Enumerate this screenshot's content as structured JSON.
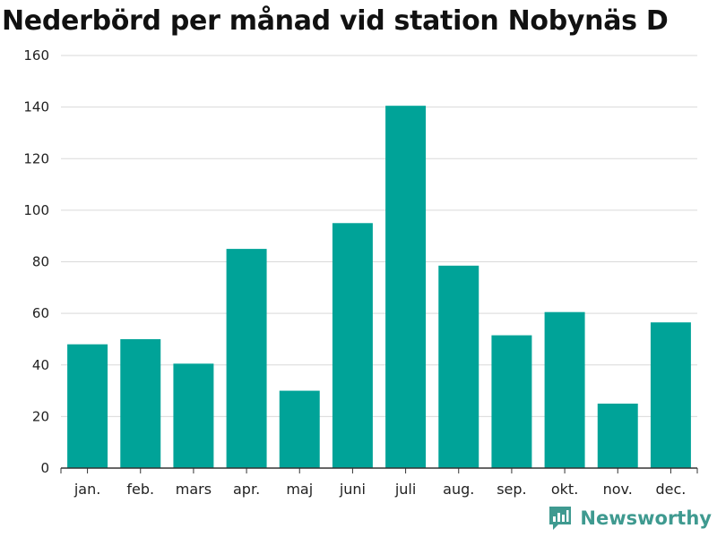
{
  "chart_data": {
    "type": "bar",
    "title": "Nederbörd per månad vid station Nobynäs D",
    "categories": [
      "jan.",
      "feb.",
      "mars",
      "apr.",
      "maj",
      "juni",
      "juli",
      "aug.",
      "sep.",
      "okt.",
      "nov.",
      "dec."
    ],
    "values": [
      48,
      50,
      40.5,
      85,
      30,
      95,
      140.5,
      78.5,
      51.5,
      60.5,
      25,
      56.5
    ],
    "ylim": [
      0,
      160
    ],
    "yticks": [
      0,
      20,
      40,
      60,
      80,
      100,
      120,
      140,
      160
    ],
    "xlabel": "",
    "ylabel": "",
    "grid": true,
    "bar_color": "#00a398"
  },
  "brand": {
    "name": "Newsworthy",
    "color": "#3f9a90",
    "icon": "newsworthy-logo-icon"
  }
}
